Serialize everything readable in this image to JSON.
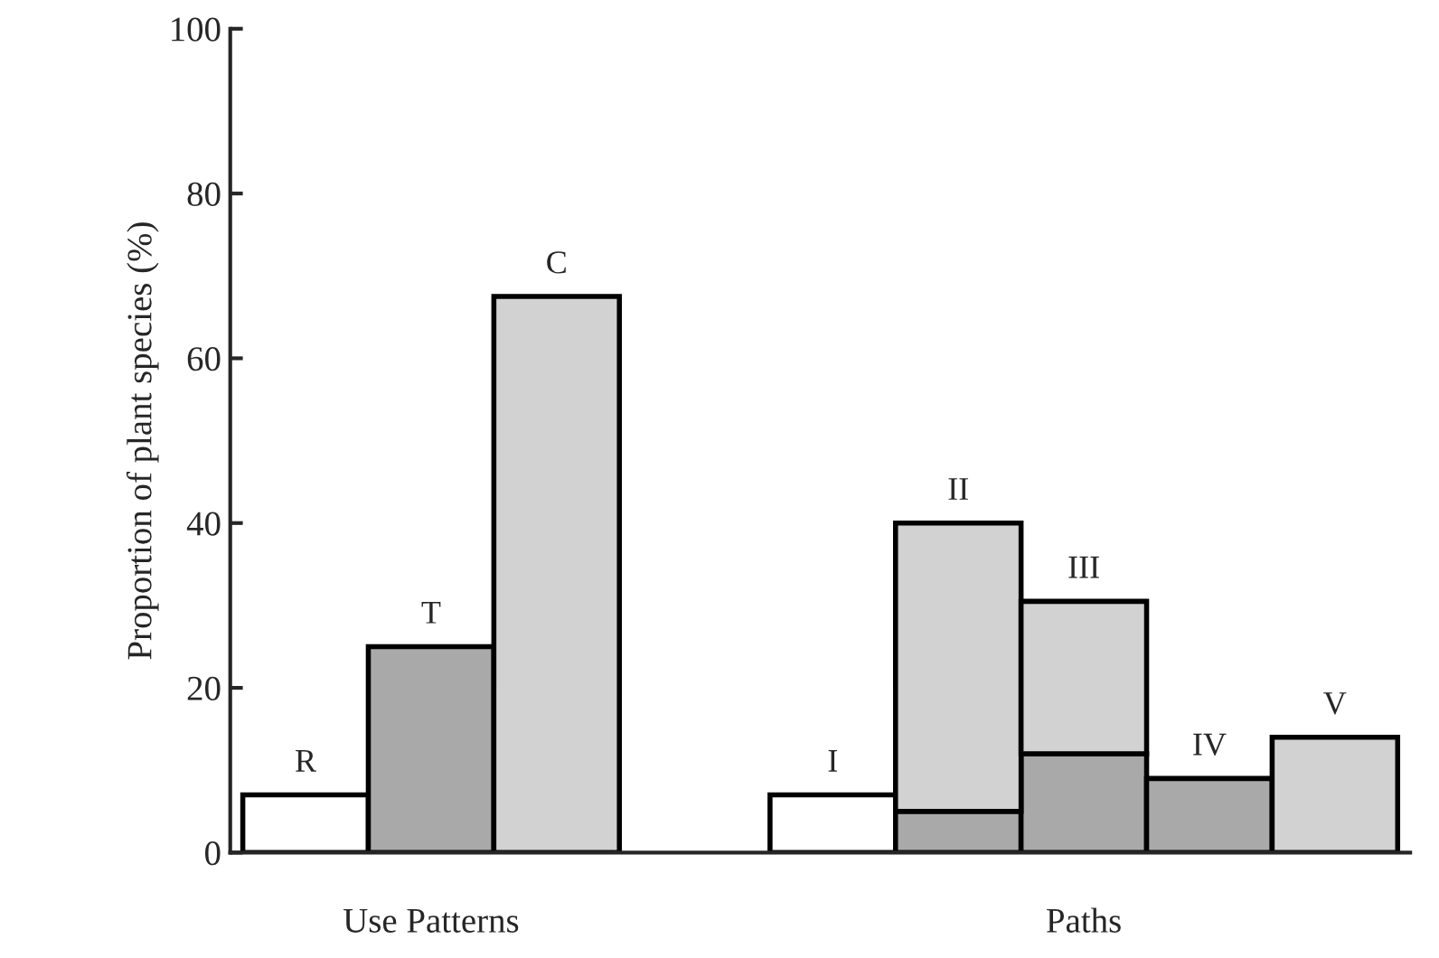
{
  "chart_data": {
    "type": "bar",
    "stacked": true,
    "ylabel": "Proportion of plant species (%)",
    "categories": [
      null,
      null,
      null,
      null,
      null,
      null,
      null,
      null
    ],
    "series": [
      {
        "color": "#ffffff",
        "values": [
          7,
          null,
          null,
          7,
          null,
          null,
          null,
          null
        ]
      },
      {
        "color": "#a9a9a9",
        "values": [
          null,
          25,
          null,
          null,
          5,
          12,
          9,
          null
        ]
      },
      {
        "color": "#d2d2d2",
        "values": [
          null,
          null,
          67.5,
          null,
          35,
          18.5,
          null,
          14
        ]
      }
    ],
    "ylim": [
      0,
      100
    ],
    "yticks": [
      0,
      20,
      40,
      60,
      80,
      100
    ],
    "grid": false,
    "legend": false,
    "annotations": [
      "R",
      "T",
      "C",
      "I",
      "II",
      "III",
      "IV",
      "V",
      "Use Patterns",
      "Paths"
    ]
  }
}
